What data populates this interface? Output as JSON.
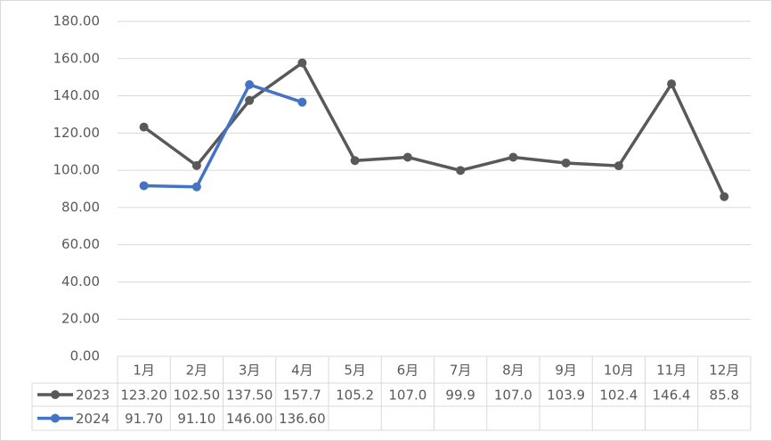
{
  "chart_data": {
    "type": "line",
    "categories": [
      "1月",
      "2月",
      "3月",
      "4月",
      "5月",
      "6月",
      "7月",
      "8月",
      "9月",
      "10月",
      "11月",
      "12月"
    ],
    "series": [
      {
        "name": "2023",
        "color": "#595959",
        "values": [
          123.2,
          102.5,
          137.5,
          157.7,
          105.2,
          107.0,
          99.9,
          107.0,
          103.9,
          102.4,
          146.4,
          85.8
        ],
        "value_labels": [
          "123.20",
          "102.50",
          "137.50",
          "157.7",
          "105.2",
          "107.0",
          "99.9",
          "107.0",
          "103.9",
          "102.4",
          "146.4",
          "85.8"
        ]
      },
      {
        "name": "2024",
        "color": "#4472c4",
        "values": [
          91.7,
          91.1,
          146.0,
          136.6,
          null,
          null,
          null,
          null,
          null,
          null,
          null,
          null
        ],
        "value_labels": [
          "91.70",
          "91.10",
          "146.00",
          "136.60",
          null,
          null,
          null,
          null,
          null,
          null,
          null,
          null
        ]
      }
    ],
    "ylim": [
      0,
      180
    ],
    "yticks": [
      {
        "value": 0,
        "label": "0.00"
      },
      {
        "value": 20,
        "label": "20.00"
      },
      {
        "value": 40,
        "label": "40.00"
      },
      {
        "value": 60,
        "label": "60.00"
      },
      {
        "value": 80,
        "label": "80.00"
      },
      {
        "value": 100,
        "label": "100.00"
      },
      {
        "value": 120,
        "label": "120.00"
      },
      {
        "value": 140,
        "label": "140.00"
      },
      {
        "value": 160,
        "label": "160.00"
      },
      {
        "value": 180,
        "label": "180.00"
      }
    ],
    "grid": true
  }
}
